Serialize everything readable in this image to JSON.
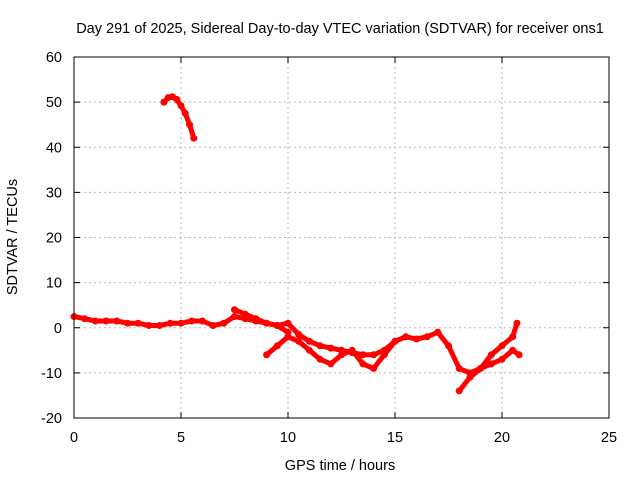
{
  "chart_data": {
    "type": "line",
    "title": "Day 291 of 2025, Sidereal Day-to-day VTEC variation (SDTVAR) for receiver ons1",
    "xlabel": "GPS time / hours",
    "ylabel": "SDTVAR / TECUs",
    "xlim": [
      0,
      25
    ],
    "ylim": [
      -20,
      60
    ],
    "xticks": [
      0,
      5,
      10,
      15,
      20,
      25
    ],
    "yticks": [
      -20,
      -10,
      0,
      10,
      20,
      30,
      40,
      50,
      60
    ],
    "grid": true,
    "series_color": "#ff0000",
    "series": [
      {
        "name": "main-band",
        "x": [
          0,
          0.5,
          1,
          1.5,
          2,
          2.5,
          3,
          3.5,
          4,
          4.5,
          5,
          5.5,
          6,
          6.5,
          7,
          7.5,
          8,
          8.5,
          9,
          9.5,
          10,
          10.5,
          11,
          11.5,
          12,
          12.5,
          13,
          13.5,
          14,
          14.5,
          15,
          15.5,
          16,
          16.5,
          17
        ],
        "y": [
          2.5,
          2,
          1.5,
          1.5,
          1.5,
          1,
          1,
          0.5,
          0.5,
          1,
          1,
          1.5,
          1.5,
          0.5,
          1,
          2.5,
          2,
          1.5,
          1,
          0.5,
          1,
          -1.5,
          -3,
          -4,
          -4.5,
          -5,
          -5.5,
          -6,
          -6,
          -5,
          -3,
          -2,
          -2.5,
          -2,
          -1
        ]
      },
      {
        "name": "lower-band",
        "x": [
          9,
          9.5,
          10,
          10.5,
          11,
          11.5,
          12,
          12.5,
          13,
          13.5,
          14,
          14.5,
          15
        ],
        "y": [
          -6,
          -4,
          -2,
          -3,
          -5,
          -7,
          -8,
          -6,
          -5,
          -8,
          -9,
          -6,
          -3
        ]
      },
      {
        "name": "upper-band",
        "x": [
          7.5,
          8,
          8.5,
          9,
          9.5,
          10
        ],
        "y": [
          4,
          3,
          2,
          1,
          0.5,
          -1
        ]
      },
      {
        "name": "tail-band",
        "x": [
          17,
          17.5,
          18,
          18.5,
          19,
          19.5,
          20,
          20.5,
          20.8
        ],
        "y": [
          -1,
          -4,
          -9,
          -10,
          -9,
          -8,
          -7,
          -5,
          -6
        ]
      },
      {
        "name": "tail-spike",
        "x": [
          18,
          18.5,
          19,
          19.5,
          20,
          20.5,
          20.7
        ],
        "y": [
          -14,
          -11,
          -9,
          -6,
          -4,
          -2,
          1
        ]
      },
      {
        "name": "arc-segment",
        "x": [
          4.2,
          4.4,
          4.6,
          4.8,
          5.0,
          5.2,
          5.4,
          5.6
        ],
        "y": [
          50,
          51,
          51.2,
          50.6,
          49.2,
          47.5,
          45,
          42
        ]
      }
    ]
  }
}
